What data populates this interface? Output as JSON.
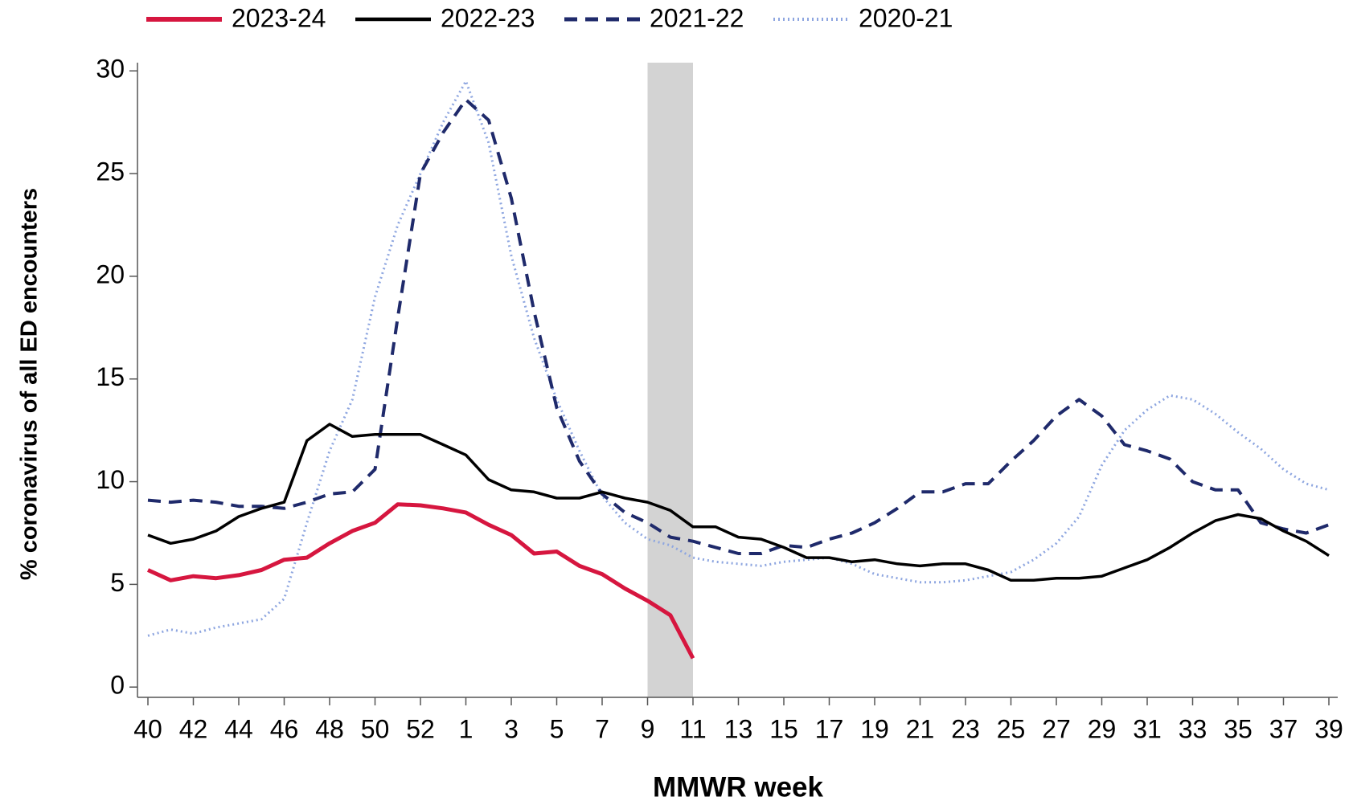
{
  "chart_data": {
    "type": "line",
    "y_label": "% coronavirus of all ED encounters",
    "x_label": "MMWR week",
    "categories": [
      "40",
      null,
      "42",
      null,
      "44",
      null,
      "46",
      null,
      "48",
      null,
      "50",
      null,
      "52",
      null,
      "1",
      null,
      "3",
      null,
      "5",
      null,
      "7",
      null,
      "9",
      null,
      "11",
      null,
      "13",
      null,
      "15",
      null,
      "17",
      null,
      "19",
      null,
      "21",
      null,
      "23",
      null,
      "25",
      null,
      "27",
      null,
      "29",
      null,
      "31",
      null,
      "33",
      null,
      "35",
      null,
      "37",
      null,
      "39"
    ],
    "ylim": [
      -0.5,
      30.4
    ],
    "yticks": [
      0,
      5,
      10,
      15,
      20,
      25,
      30
    ],
    "shaded": {
      "from": 22,
      "to": 24,
      "color": "#d3d3d3"
    },
    "series": [
      {
        "name": "2023-24",
        "color": "#d6163f",
        "dash": "solid",
        "width": 5,
        "values": [
          5.7,
          5.2,
          5.4,
          5.3,
          5.45,
          5.7,
          6.2,
          6.3,
          7.0,
          7.6,
          8.0,
          8.9,
          8.85,
          8.7,
          8.5,
          7.9,
          7.4,
          6.5,
          6.6,
          5.9,
          5.5,
          4.8,
          4.2,
          3.5,
          1.4,
          null,
          null,
          null,
          null,
          null,
          null,
          null,
          null,
          null,
          null,
          null,
          null,
          null,
          null,
          null,
          null,
          null,
          null,
          null,
          null,
          null,
          null,
          null,
          null,
          null,
          null,
          null,
          null
        ]
      },
      {
        "name": "2022-23",
        "color": "#000000",
        "dash": "solid",
        "width": 3.5,
        "values": [
          7.4,
          7.0,
          7.2,
          7.6,
          8.3,
          8.7,
          9.0,
          12.0,
          12.8,
          12.2,
          12.3,
          12.3,
          12.3,
          11.8,
          11.3,
          10.1,
          9.6,
          9.5,
          9.2,
          9.2,
          9.5,
          9.2,
          9.0,
          8.6,
          7.8,
          7.8,
          7.3,
          7.2,
          6.8,
          6.3,
          6.3,
          6.1,
          6.2,
          6.0,
          5.9,
          6.0,
          6.0,
          5.7,
          5.2,
          5.2,
          5.3,
          5.3,
          5.4,
          5.8,
          6.2,
          6.8,
          7.5,
          8.1,
          8.4,
          8.2,
          7.6,
          7.1,
          6.4
        ]
      },
      {
        "name": "2021-22",
        "color": "#1f2a6b",
        "dash": "dash",
        "width": 4,
        "values": [
          9.1,
          9.0,
          9.1,
          9.0,
          8.8,
          8.8,
          8.7,
          9.0,
          9.4,
          9.5,
          10.6,
          18.0,
          25.0,
          27.0,
          28.6,
          27.6,
          23.8,
          18.3,
          13.6,
          11.0,
          9.4,
          8.5,
          8.0,
          7.3,
          7.1,
          6.8,
          6.5,
          6.5,
          6.9,
          6.8,
          7.2,
          7.5,
          8.0,
          8.7,
          9.5,
          9.5,
          9.9,
          9.9,
          11.0,
          12.0,
          13.2,
          14.0,
          13.2,
          11.8,
          11.5,
          11.1,
          10.0,
          9.6,
          9.6,
          8.0,
          7.7,
          7.5,
          7.9
        ]
      },
      {
        "name": "2020-21",
        "color": "#8ea6e0",
        "dash": "dot",
        "width": 3,
        "values": [
          2.5,
          2.8,
          2.6,
          2.9,
          3.1,
          3.3,
          4.3,
          8.0,
          11.5,
          14.0,
          19.0,
          22.5,
          25.0,
          27.5,
          29.5,
          26.5,
          21.0,
          17.0,
          14.0,
          11.5,
          9.3,
          8.0,
          7.2,
          6.9,
          6.3,
          6.1,
          6.0,
          5.9,
          6.1,
          6.2,
          6.3,
          6.0,
          5.5,
          5.3,
          5.1,
          5.1,
          5.2,
          5.4,
          5.6,
          6.2,
          7.0,
          8.3,
          10.8,
          12.5,
          13.5,
          14.2,
          14.0,
          13.3,
          12.4,
          11.6,
          10.6,
          9.9,
          9.6
        ]
      }
    ]
  }
}
